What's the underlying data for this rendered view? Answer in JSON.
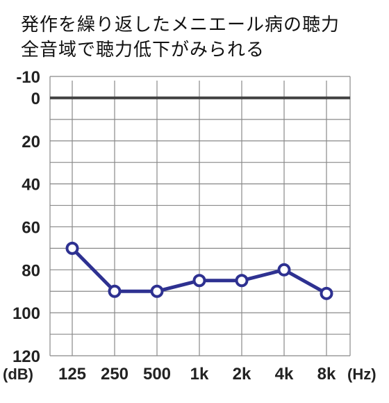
{
  "title": {
    "line1": "発作を繰り返したメニエール病の聴力",
    "line2": "全音域で聴力低下がみられる"
  },
  "chart_data": {
    "type": "line",
    "title": "発作を繰り返したメニエール病の聴力 全音域で聴力低下がみられる",
    "x_unit_label": "(Hz)",
    "y_unit_label": "(dB)",
    "x": [
      "125",
      "250",
      "500",
      "1k",
      "2k",
      "4k",
      "8k"
    ],
    "y_ticks": [
      "-10",
      "0",
      "20",
      "40",
      "60",
      "80",
      "100",
      "120"
    ],
    "y_tick_values": [
      -10,
      0,
      20,
      40,
      60,
      80,
      100,
      120
    ],
    "ylim": [
      -10,
      120
    ],
    "y_inverted": true,
    "grid": true,
    "series": [
      {
        "values": [
          70,
          90,
          90,
          85,
          85,
          80,
          91
        ]
      }
    ],
    "colors": {
      "line": "#2e3191",
      "grid": "#888888",
      "zero_line": "#444444",
      "marker_fill": "#ffffff"
    }
  }
}
